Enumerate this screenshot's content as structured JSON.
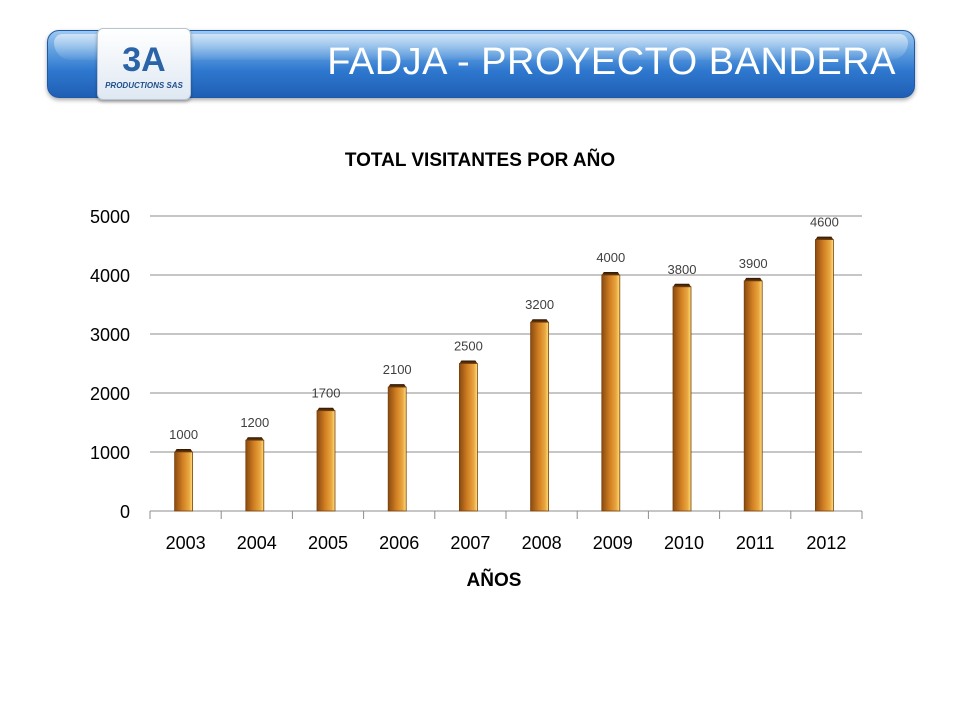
{
  "header": {
    "title": "FADJA - PROYECTO BANDERA",
    "logo_text": "PRODUCTIONS SAS",
    "logo_mark": "3A"
  },
  "chart_data": {
    "type": "bar",
    "title": "TOTAL VISITANTES POR AÑO",
    "xlabel": "AÑOS",
    "ylabel": "",
    "categories": [
      "2003",
      "2004",
      "2005",
      "2006",
      "2007",
      "2008",
      "2009",
      "2010",
      "2011",
      "2012"
    ],
    "values": [
      1000,
      1200,
      1700,
      2100,
      2500,
      3200,
      4000,
      3800,
      3900,
      4600
    ],
    "ylim": [
      0,
      5000
    ],
    "yticks": [
      0,
      1000,
      2000,
      3000,
      4000,
      5000
    ],
    "grid": true,
    "legend": "none",
    "bar_color": "#c8741c"
  }
}
